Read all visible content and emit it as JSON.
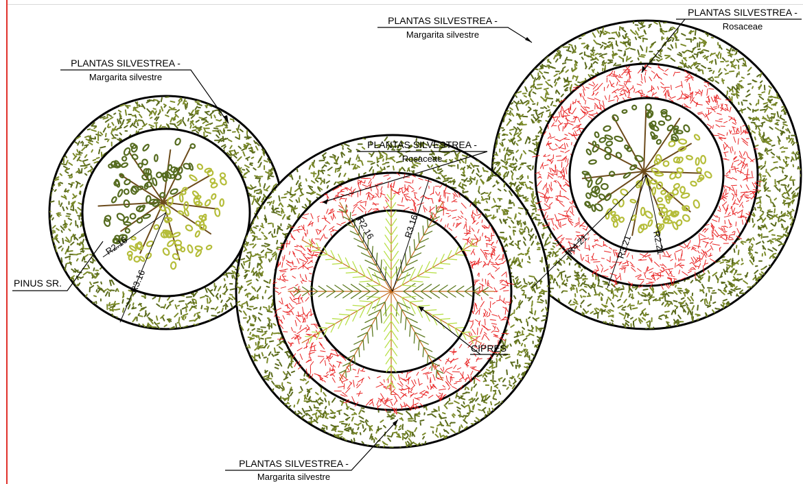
{
  "colors": {
    "grass_dark": "#5a6a1c",
    "grass_mid": "#7b8a2a",
    "rose": "#e82020",
    "tree_dark": "#556b1f",
    "tree_light": "#b5bd3a",
    "trunk": "#6b4a1a",
    "cypress_dark": "#5c7a20",
    "cypress_light": "#b8e04a",
    "line": "#000000"
  },
  "labels": {
    "left_top": {
      "line1": "PLANTAS SILVESTREA -",
      "line2": "Margarita silvestre"
    },
    "center_top": {
      "line1": "PLANTAS SILVESTREA -",
      "line2": "Rosaceae"
    },
    "right_top_a": {
      "line1": "PLANTAS SILVESTREA -",
      "line2": "Margarita silvestre"
    },
    "right_top_b": {
      "line1": "PLANTAS SILVESTREA -",
      "line2": "Rosaceae"
    },
    "bottom": {
      "line1": "PLANTAS SILVESTREA -",
      "line2": "Margarita silvestre"
    },
    "pinus": "PINUS SR.",
    "cipres": "CIPRES"
  },
  "dimensions": {
    "left_inner": "R2.16",
    "left_outer": "R3.16",
    "center_inner": "R2.16",
    "center_outer": "R3.16",
    "right_inner": "R2.21",
    "right_mid": "R3.21",
    "right_outer": "R4.21"
  }
}
